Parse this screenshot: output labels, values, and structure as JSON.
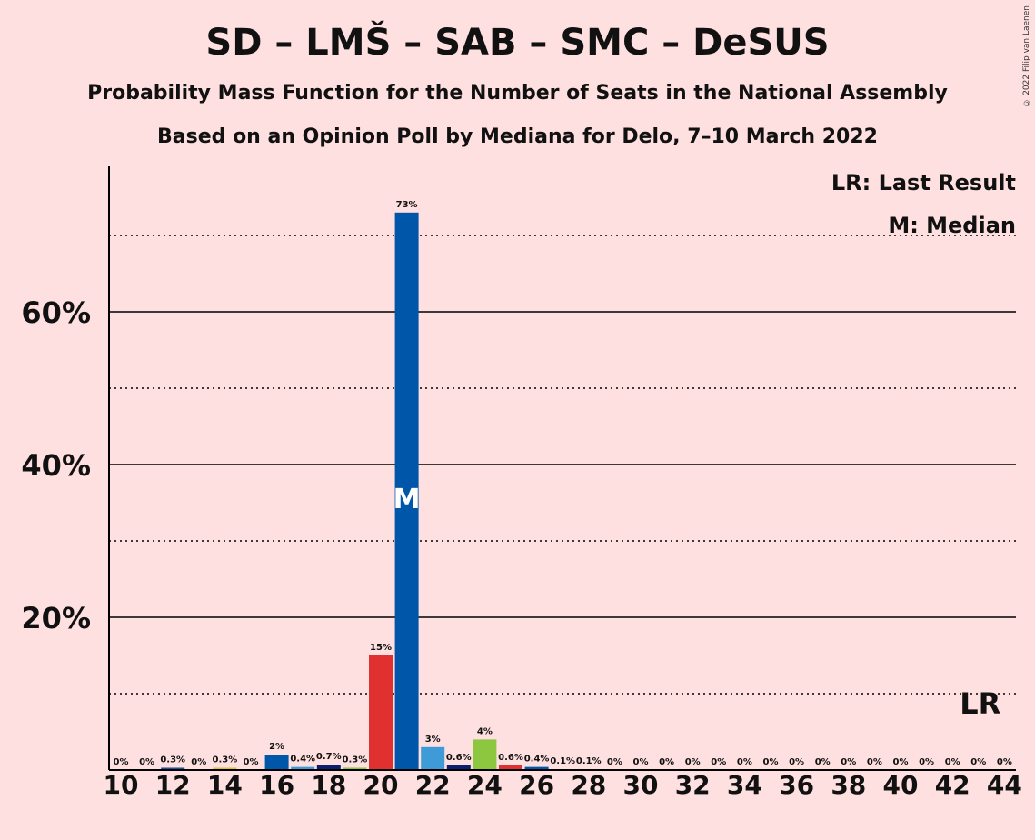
{
  "title": "SD – LMŠ – SAB – SMC – DeSUS",
  "subtitle1": "Probability Mass Function for the Number of Seats in the National Assembly",
  "subtitle2": "Based on an Opinion Poll by Mediana for Delo, 7–10 March 2022",
  "copyright": "© 2022 Filip van Laenen",
  "legend": {
    "lr": "LR: Last Result",
    "m": "M: Median"
  },
  "markers": {
    "median_label": "M",
    "median_seat": 21,
    "lr_label": "LR",
    "lr_seat": 43
  },
  "chart_data": {
    "type": "bar",
    "xlabel": "",
    "ylabel": "",
    "ylim": [
      0,
      78
    ],
    "yticks": [
      {
        "value": 20,
        "label": "20%"
      },
      {
        "value": 40,
        "label": "40%"
      },
      {
        "value": 60,
        "label": "60%"
      }
    ],
    "minor_gridlines": [
      10,
      30,
      50,
      70
    ],
    "xticks": [
      10,
      12,
      14,
      16,
      18,
      20,
      22,
      24,
      26,
      28,
      30,
      32,
      34,
      36,
      38,
      40,
      42,
      44
    ],
    "bars": [
      {
        "seat": 10,
        "value": 0,
        "label": "0%",
        "color": "#1f4fa0"
      },
      {
        "seat": 11,
        "value": 0,
        "label": "0%",
        "color": "#1f4fa0"
      },
      {
        "seat": 12,
        "value": 0.3,
        "label": "0.3%",
        "color": "#1f4fa0"
      },
      {
        "seat": 13,
        "value": 0,
        "label": "0%",
        "color": "#1f4fa0"
      },
      {
        "seat": 14,
        "value": 0.3,
        "label": "0.3%",
        "color": "#e0c030"
      },
      {
        "seat": 15,
        "value": 0,
        "label": "0%",
        "color": "#1f4fa0"
      },
      {
        "seat": 16,
        "value": 2,
        "label": "2%",
        "color": "#0056a8"
      },
      {
        "seat": 17,
        "value": 0.4,
        "label": "0.4%",
        "color": "#3f9ad8"
      },
      {
        "seat": 18,
        "value": 0.7,
        "label": "0.7%",
        "color": "#0b1f6e"
      },
      {
        "seat": 19,
        "value": 0.3,
        "label": "0.3%",
        "color": "#8dc63f"
      },
      {
        "seat": 20,
        "value": 15,
        "label": "15%",
        "color": "#e03030"
      },
      {
        "seat": 21,
        "value": 73,
        "label": "73%",
        "color": "#0056a8"
      },
      {
        "seat": 22,
        "value": 3,
        "label": "3%",
        "color": "#3f9ad8"
      },
      {
        "seat": 23,
        "value": 0.6,
        "label": "0.6%",
        "color": "#0b1f6e"
      },
      {
        "seat": 24,
        "value": 4,
        "label": "4%",
        "color": "#8dc63f"
      },
      {
        "seat": 25,
        "value": 0.6,
        "label": "0.6%",
        "color": "#e03030"
      },
      {
        "seat": 26,
        "value": 0.4,
        "label": "0.4%",
        "color": "#0056a8"
      },
      {
        "seat": 27,
        "value": 0.1,
        "label": "0.1%",
        "color": "#3f9ad8"
      },
      {
        "seat": 28,
        "value": 0.1,
        "label": "0.1%",
        "color": "#0b1f6e"
      },
      {
        "seat": 29,
        "value": 0,
        "label": "0%",
        "color": "#1f4fa0"
      },
      {
        "seat": 30,
        "value": 0,
        "label": "0%",
        "color": "#1f4fa0"
      },
      {
        "seat": 31,
        "value": 0,
        "label": "0%",
        "color": "#1f4fa0"
      },
      {
        "seat": 32,
        "value": 0,
        "label": "0%",
        "color": "#1f4fa0"
      },
      {
        "seat": 33,
        "value": 0,
        "label": "0%",
        "color": "#1f4fa0"
      },
      {
        "seat": 34,
        "value": 0,
        "label": "0%",
        "color": "#1f4fa0"
      },
      {
        "seat": 35,
        "value": 0,
        "label": "0%",
        "color": "#1f4fa0"
      },
      {
        "seat": 36,
        "value": 0,
        "label": "0%",
        "color": "#1f4fa0"
      },
      {
        "seat": 37,
        "value": 0,
        "label": "0%",
        "color": "#1f4fa0"
      },
      {
        "seat": 38,
        "value": 0,
        "label": "0%",
        "color": "#1f4fa0"
      },
      {
        "seat": 39,
        "value": 0,
        "label": "0%",
        "color": "#1f4fa0"
      },
      {
        "seat": 40,
        "value": 0,
        "label": "0%",
        "color": "#1f4fa0"
      },
      {
        "seat": 41,
        "value": 0,
        "label": "0%",
        "color": "#1f4fa0"
      },
      {
        "seat": 42,
        "value": 0,
        "label": "0%",
        "color": "#1f4fa0"
      },
      {
        "seat": 43,
        "value": 0,
        "label": "0%",
        "color": "#1f4fa0"
      },
      {
        "seat": 44,
        "value": 0,
        "label": "0%",
        "color": "#1f4fa0"
      }
    ]
  }
}
